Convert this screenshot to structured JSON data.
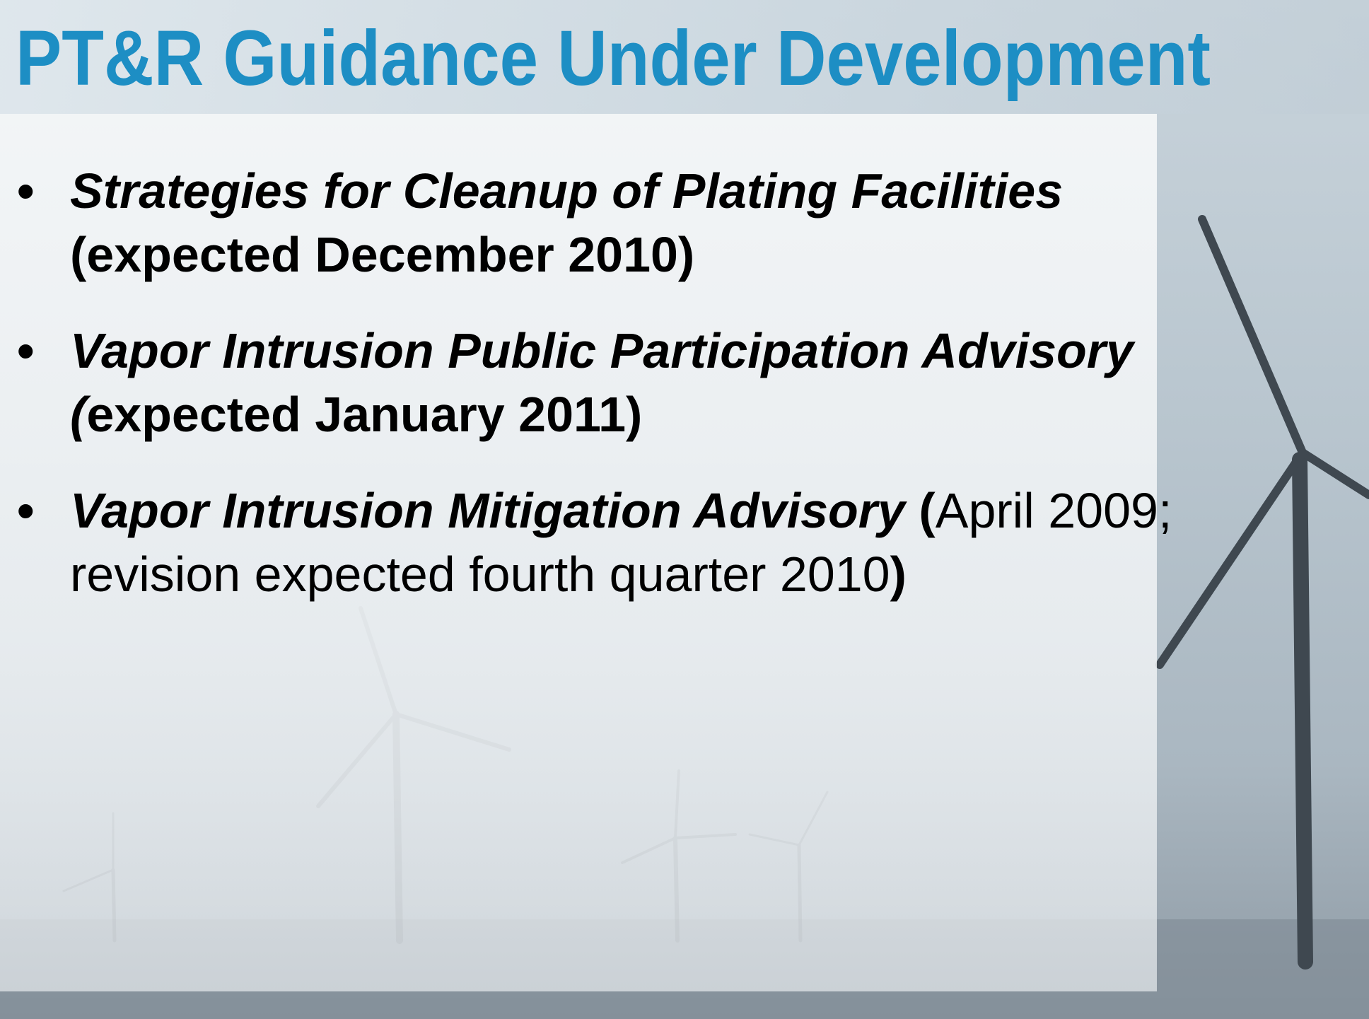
{
  "header": {
    "title": "PT&R Guidance Under Development"
  },
  "bullets": [
    {
      "segments": [
        {
          "text": "Strategies for Cleanup of Plating Facilities",
          "style": "bold-italic"
        },
        {
          "text": " (expected December 2010)",
          "style": "bold"
        }
      ]
    },
    {
      "segments": [
        {
          "text": "Vapor Intrusion Public Participation Advisory (",
          "style": "bold-italic"
        },
        {
          "text": "expected January 2011)",
          "style": "bold"
        }
      ]
    },
    {
      "segments": [
        {
          "text": "Vapor Intrusion Mitigation Advisory",
          "style": "bold-italic"
        },
        {
          "text": " (",
          "style": "bold"
        },
        {
          "text": "April 2009; revision expected fourth quarter 2010",
          "style": "regular"
        },
        {
          "text": ")",
          "style": "bold"
        }
      ]
    }
  ]
}
